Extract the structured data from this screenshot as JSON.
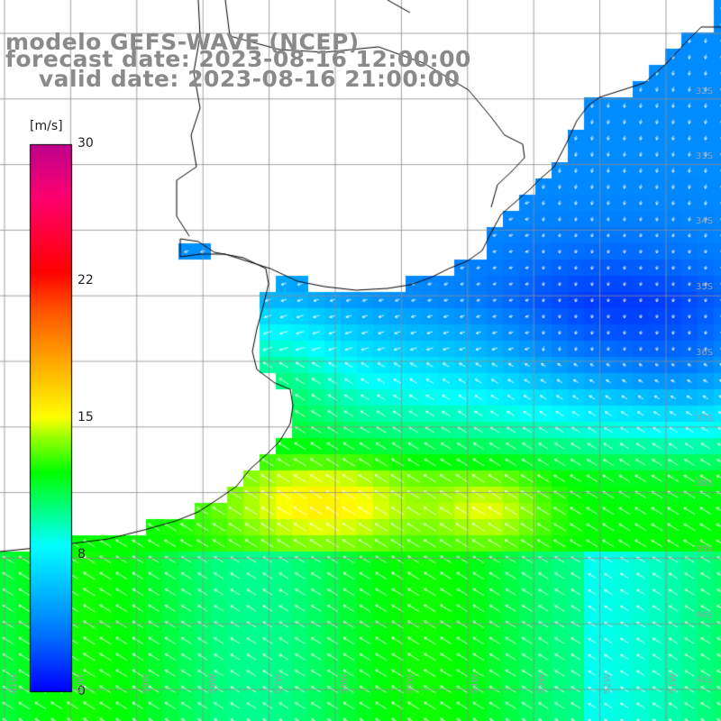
{
  "title": {
    "line1": "modelo GEFS-WAVE (NCEP)",
    "line2": "forecast date: 2023-08-16 12:00:00",
    "line3": "    valid date: 2023-08-16 21:00:00"
  },
  "colorbar": {
    "unit": "[m/s]",
    "ticks": [
      "30",
      "22",
      "15",
      "8",
      "0"
    ],
    "tick_values": [
      30,
      22,
      15,
      8,
      0
    ],
    "colors": [
      "#0000ff",
      "#0080ff",
      "#00ffff",
      "#00ff40",
      "#00ff00",
      "#80ff00",
      "#ffff00",
      "#ff8000",
      "#ff0000",
      "#ff0060",
      "#c00080"
    ]
  },
  "grid": {
    "lat_labels": [
      "32S",
      "33S",
      "34S",
      "35S",
      "36S",
      "37S",
      "38S",
      "39S",
      "40S",
      "41S"
    ],
    "lon_labels": [
      "61W",
      "60W",
      "59W",
      "58W",
      "57W",
      "56W",
      "55W",
      "54W",
      "53W",
      "52W",
      "51W"
    ]
  },
  "map_data": {
    "field": "wind speed",
    "region": "Rio de la Plata / South Atlantic",
    "lon_range": [
      -61,
      -50
    ],
    "lat_range": [
      -41.5,
      -31.5
    ],
    "land_color": "#ffffff"
  }
}
